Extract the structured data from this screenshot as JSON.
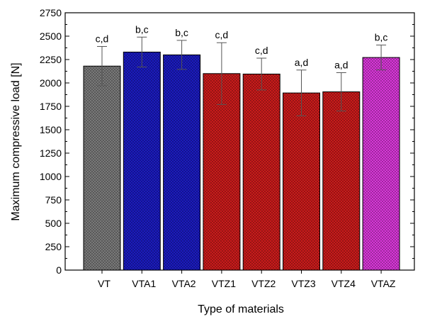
{
  "chart_data": {
    "type": "bar",
    "title": "",
    "xlabel": "Type of materials",
    "ylabel": "Maximum compressive load [N]",
    "ylim": [
      0,
      2750
    ],
    "yticks": [
      0,
      250,
      500,
      750,
      1000,
      1250,
      1500,
      1750,
      2000,
      2250,
      2500,
      2750
    ],
    "categories": [
      "VT",
      "VTA1",
      "VTA2",
      "VTZ1",
      "VTZ2",
      "VTZ3",
      "VTZ4",
      "VTAZ"
    ],
    "values": [
      2180,
      2330,
      2300,
      2100,
      2095,
      1893,
      1905,
      2272
    ],
    "errors": [
      210,
      160,
      155,
      330,
      170,
      245,
      205,
      133
    ],
    "significance_labels": [
      "c,d",
      "b,c",
      "b,c",
      "c,d",
      "c,d",
      "a,d",
      "a,d",
      "b,c"
    ],
    "bar_colors": [
      "#7f7f7f",
      "#1c1cc8",
      "#1c1cc8",
      "#d41c1c",
      "#d41c1c",
      "#d41c1c",
      "#d41c1c",
      "#e23ae2"
    ],
    "pattern": "crosshatch",
    "grid": false,
    "legend": "none"
  }
}
